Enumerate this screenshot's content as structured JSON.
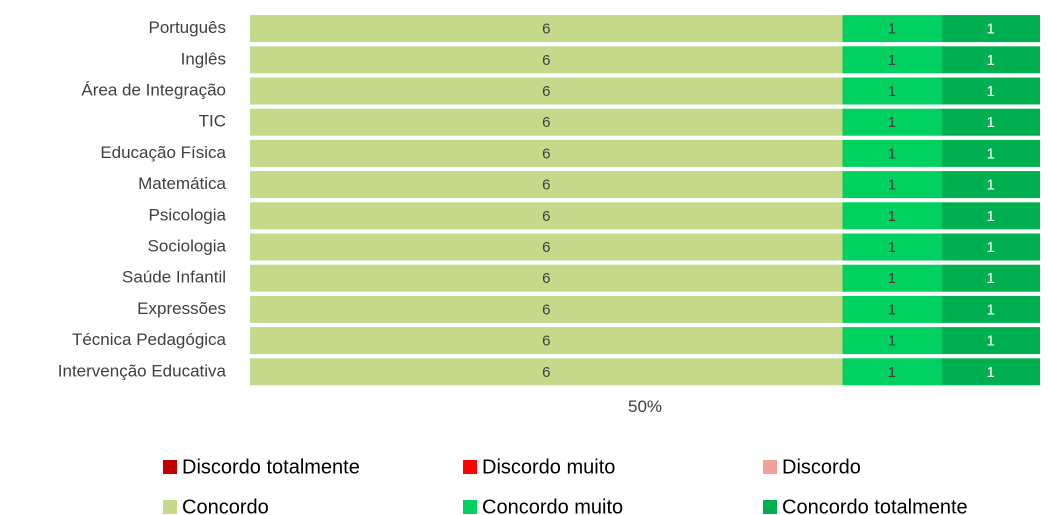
{
  "chart_data": {
    "type": "stacked_bar_100",
    "orientation": "horizontal",
    "categories": [
      "Português",
      "Inglês",
      "Área de Integração",
      "TIC",
      "Educação Física",
      "Matemática",
      "Psicologia",
      "Sociologia",
      "Saúde Infantil",
      "Expressões",
      "Técnica Pedagógica",
      "Intervenção Educativa"
    ],
    "series": [
      {
        "name": "Discordo totalmente",
        "color": "#c00000",
        "values": [
          0,
          0,
          0,
          0,
          0,
          0,
          0,
          0,
          0,
          0,
          0,
          0
        ]
      },
      {
        "name": "Discordo muito",
        "color": "#ff0000",
        "values": [
          0,
          0,
          0,
          0,
          0,
          0,
          0,
          0,
          0,
          0,
          0,
          0
        ]
      },
      {
        "name": "Discordo",
        "color": "#f4a09c",
        "values": [
          0,
          0,
          0,
          0,
          0,
          0,
          0,
          0,
          0,
          0,
          0,
          0
        ]
      },
      {
        "name": "Concordo",
        "color": "#c4d98a",
        "values": [
          6,
          6,
          6,
          6,
          6,
          6,
          6,
          6,
          6,
          6,
          6,
          6
        ]
      },
      {
        "name": "Concordo muito",
        "color": "#00d060",
        "values": [
          1,
          1,
          1,
          1,
          1,
          1,
          1,
          1,
          1,
          1,
          1,
          1
        ]
      },
      {
        "name": "Concordo totalmente",
        "color": "#00b050",
        "values": [
          1,
          1,
          1,
          1,
          1,
          1,
          1,
          1,
          1,
          1,
          1,
          1
        ]
      }
    ],
    "xlim": [
      0,
      100
    ],
    "xticks": [
      {
        "value": 50,
        "label": "50%"
      }
    ]
  }
}
